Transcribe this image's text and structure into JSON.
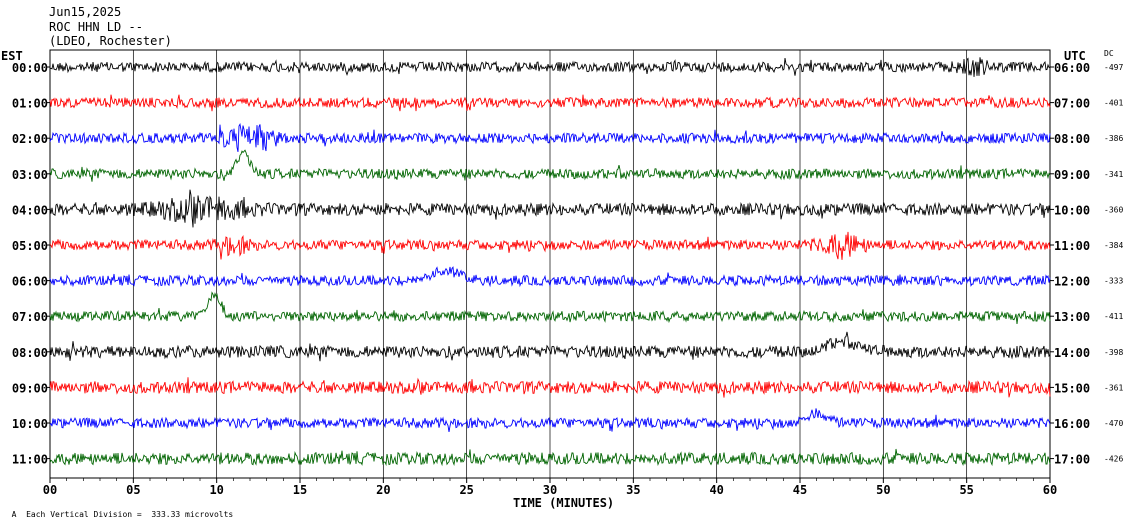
{
  "header": {
    "date": "Jun15,2025",
    "station": "ROC HHN LD --",
    "network": "(LDEO, Rochester)"
  },
  "axes": {
    "left_title": "EST",
    "right_title": "UTC",
    "dc_title": "DC",
    "x_title": "TIME (MINUTES)"
  },
  "footer": {
    "mark": "A",
    "scale_note": "Each Vertical Division =  333.33 microvolts"
  },
  "colors": {
    "black": "#000000",
    "red": "#ff0000",
    "blue": "#0000ff",
    "green": "#006400",
    "grid": "#000000"
  },
  "chart_data": {
    "type": "line",
    "title": "ROC HHN LD --",
    "xlabel": "TIME (MINUTES)",
    "xlim": [
      0,
      60
    ],
    "x_ticks": [
      "00",
      "05",
      "10",
      "15",
      "20",
      "25",
      "30",
      "35",
      "40",
      "45",
      "50",
      "55",
      "60"
    ],
    "grid": true,
    "series": [
      {
        "est": "00:00",
        "utc": "06:00",
        "dc": "-497",
        "color": "black",
        "amp": 5,
        "events": [
          {
            "t": 55.3,
            "a": 6,
            "w": 0.8
          }
        ]
      },
      {
        "est": "01:00",
        "utc": "07:00",
        "dc": "-401",
        "color": "red",
        "amp": 5,
        "events": []
      },
      {
        "est": "02:00",
        "utc": "08:00",
        "dc": "-386",
        "color": "blue",
        "amp": 5,
        "events": [
          {
            "t": 11.5,
            "a": 8,
            "w": 1.2
          },
          {
            "t": 13.0,
            "a": 7,
            "w": 0.6
          }
        ]
      },
      {
        "est": "03:00",
        "utc": "09:00",
        "dc": "-341",
        "color": "green",
        "amp": 5,
        "events": [
          {
            "t": 11.6,
            "a": -22,
            "w": 0.5
          }
        ]
      },
      {
        "est": "04:00",
        "utc": "10:00",
        "dc": "-360",
        "color": "black",
        "amp": 6,
        "events": [
          {
            "t": 9.0,
            "a": 6,
            "w": 2.5
          }
        ]
      },
      {
        "est": "05:00",
        "utc": "11:00",
        "dc": "-384",
        "color": "red",
        "amp": 5,
        "events": [
          {
            "t": 11.0,
            "a": 6,
            "w": 0.8
          },
          {
            "t": 47.5,
            "a": 8,
            "w": 1.2
          }
        ]
      },
      {
        "est": "06:00",
        "utc": "12:00",
        "dc": "-333",
        "color": "blue",
        "amp": 5,
        "events": [
          {
            "t": 23.7,
            "a": -10,
            "w": 1.2
          },
          {
            "t": 6.5,
            "a": -6,
            "w": 0.6
          }
        ]
      },
      {
        "est": "07:00",
        "utc": "13:00",
        "dc": "-411",
        "color": "green",
        "amp": 5,
        "events": [
          {
            "t": 9.9,
            "a": -22,
            "w": 0.5
          }
        ]
      },
      {
        "est": "08:00",
        "utc": "14:00",
        "dc": "-398",
        "color": "black",
        "amp": 6,
        "events": [
          {
            "t": 47.5,
            "a": -10,
            "w": 1.4
          }
        ]
      },
      {
        "est": "09:00",
        "utc": "15:00",
        "dc": "-361",
        "color": "red",
        "amp": 6,
        "events": []
      },
      {
        "est": "10:00",
        "utc": "16:00",
        "dc": "-470",
        "color": "blue",
        "amp": 5,
        "events": [
          {
            "t": 7.5,
            "a": -8,
            "w": 0.8
          },
          {
            "t": 46.0,
            "a": -10,
            "w": 0.8
          }
        ]
      },
      {
        "est": "11:00",
        "utc": "17:00",
        "dc": "-426",
        "color": "green",
        "amp": 6,
        "events": []
      }
    ]
  }
}
